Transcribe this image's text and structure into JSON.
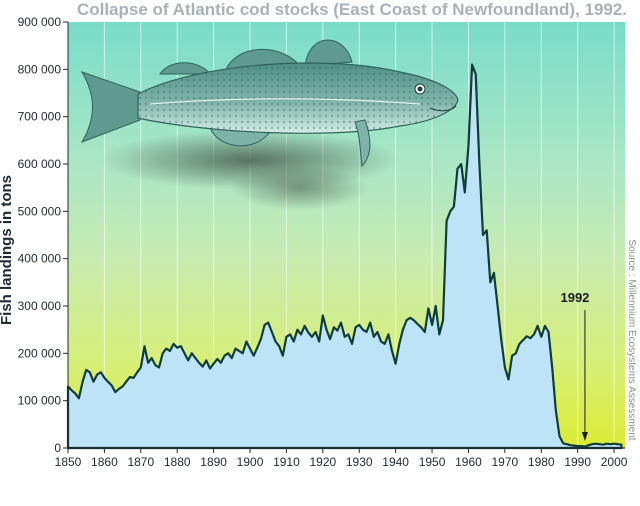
{
  "chart_data": {
    "type": "area",
    "title": "Collapse of Atlantic cod stocks (East Coast of Newfoundland), 1992.",
    "xlabel": "",
    "ylabel": "Fish landings in tons",
    "source": "Source : Millennium Ecosystems Assessment",
    "annotation": "1992",
    "annotation_x": 1992,
    "xlim": [
      1850,
      2003
    ],
    "ylim": [
      0,
      900000
    ],
    "x_ticks": [
      1850,
      1860,
      1870,
      1880,
      1890,
      1900,
      1910,
      1920,
      1930,
      1940,
      1950,
      1960,
      1970,
      1980,
      1990,
      2000
    ],
    "y_ticks": [
      0,
      100000,
      200000,
      300000,
      400000,
      500000,
      600000,
      700000,
      800000,
      900000
    ],
    "y_tick_labels": [
      "0",
      "100 000",
      "200 000",
      "300 000",
      "400 000",
      "500 000",
      "600 000",
      "700 000",
      "800 000",
      "900 000"
    ],
    "grid": "vertical",
    "colors": {
      "fill": "#bfe3f6",
      "line": "#0f3d38",
      "bg_top": "#79dcc8",
      "bg_mid": "#c4e8b4",
      "bg_bottom": "#d8ec3c"
    },
    "x": [
      1850,
      1851,
      1852,
      1853,
      1854,
      1855,
      1856,
      1857,
      1858,
      1859,
      1860,
      1861,
      1862,
      1863,
      1864,
      1865,
      1866,
      1867,
      1868,
      1869,
      1870,
      1871,
      1872,
      1873,
      1874,
      1875,
      1876,
      1877,
      1878,
      1879,
      1880,
      1881,
      1882,
      1883,
      1884,
      1885,
      1886,
      1887,
      1888,
      1889,
      1890,
      1891,
      1892,
      1893,
      1894,
      1895,
      1896,
      1897,
      1898,
      1899,
      1900,
      1901,
      1902,
      1903,
      1904,
      1905,
      1906,
      1907,
      1908,
      1909,
      1910,
      1911,
      1912,
      1913,
      1914,
      1915,
      1916,
      1917,
      1918,
      1919,
      1920,
      1921,
      1922,
      1923,
      1924,
      1925,
      1926,
      1927,
      1928,
      1929,
      1930,
      1931,
      1932,
      1933,
      1934,
      1935,
      1936,
      1937,
      1938,
      1939,
      1940,
      1941,
      1942,
      1943,
      1944,
      1945,
      1946,
      1947,
      1948,
      1949,
      1950,
      1951,
      1952,
      1953,
      1954,
      1955,
      1956,
      1957,
      1958,
      1959,
      1960,
      1961,
      1962,
      1963,
      1964,
      1965,
      1966,
      1967,
      1968,
      1969,
      1970,
      1971,
      1972,
      1973,
      1974,
      1975,
      1976,
      1977,
      1978,
      1979,
      1980,
      1981,
      1982,
      1983,
      1984,
      1985,
      1986,
      1987,
      1988,
      1989,
      1990,
      1991,
      1992,
      1993,
      1994,
      1995,
      1996,
      1997,
      1998,
      1999,
      2000,
      2001,
      2002
    ],
    "series": [
      {
        "values": [
          130000,
          122000,
          115000,
          105000,
          140000,
          165000,
          160000,
          140000,
          155000,
          160000,
          148000,
          140000,
          132000,
          118000,
          125000,
          130000,
          140000,
          150000,
          148000,
          160000,
          170000,
          215000,
          180000,
          190000,
          175000,
          170000,
          200000,
          210000,
          205000,
          220000,
          212000,
          215000,
          200000,
          185000,
          200000,
          190000,
          180000,
          172000,
          185000,
          168000,
          178000,
          188000,
          180000,
          195000,
          200000,
          190000,
          210000,
          205000,
          200000,
          225000,
          210000,
          195000,
          212000,
          230000,
          260000,
          265000,
          245000,
          225000,
          215000,
          195000,
          235000,
          240000,
          225000,
          250000,
          240000,
          258000,
          244000,
          235000,
          245000,
          225000,
          280000,
          250000,
          230000,
          255000,
          248000,
          265000,
          235000,
          240000,
          220000,
          255000,
          260000,
          250000,
          245000,
          265000,
          235000,
          245000,
          225000,
          220000,
          240000,
          205000,
          178000,
          220000,
          250000,
          270000,
          275000,
          270000,
          262000,
          255000,
          245000,
          295000,
          260000,
          300000,
          240000,
          270000,
          480000,
          500000,
          510000,
          590000,
          600000,
          540000,
          640000,
          810000,
          790000,
          600000,
          450000,
          460000,
          350000,
          370000,
          300000,
          230000,
          170000,
          145000,
          195000,
          200000,
          220000,
          228000,
          236000,
          232000,
          240000,
          258000,
          235000,
          258000,
          245000,
          170000,
          80000,
          25000,
          10000,
          8000,
          6000,
          5000,
          4000,
          4000,
          3000,
          6000,
          8000,
          9000,
          8000,
          7000,
          9000,
          8000,
          9000,
          8000,
          7000
        ]
      }
    ]
  }
}
